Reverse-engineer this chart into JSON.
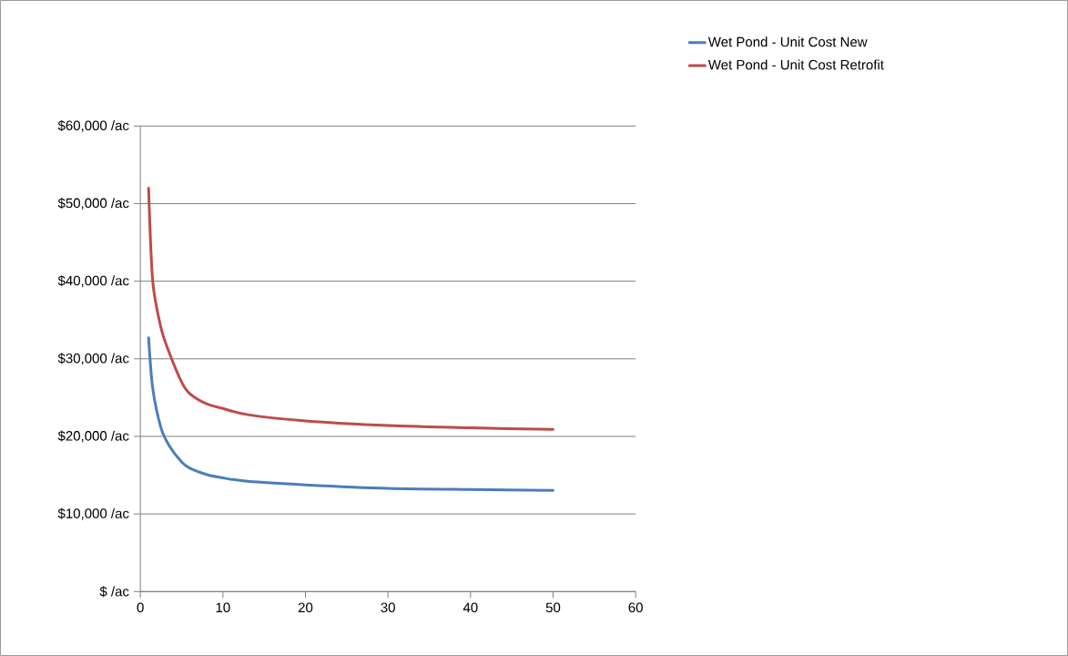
{
  "chart_data": {
    "type": "line",
    "xlim": [
      0,
      60
    ],
    "xticks": [
      0,
      10,
      20,
      30,
      40,
      50,
      60
    ],
    "ylim": [
      0,
      60000
    ],
    "yticks": [
      {
        "value": 0,
        "label": "$ /ac"
      },
      {
        "value": 10000,
        "label": "$10,000 /ac"
      },
      {
        "value": 20000,
        "label": "$20,000 /ac"
      },
      {
        "value": 30000,
        "label": "$30,000 /ac"
      },
      {
        "value": 40000,
        "label": "$40,000 /ac"
      },
      {
        "value": 50000,
        "label": "$50,000 /ac"
      },
      {
        "value": 60000,
        "label": "$60,000 /ac"
      }
    ],
    "grid": "y",
    "legend": "top right",
    "x": [
      1,
      1.5,
      2.5,
      3.5,
      5,
      6,
      8,
      10,
      13,
      20,
      30,
      40,
      50
    ],
    "series": [
      {
        "name": "Wet Pond - Unit Cost New",
        "color": "#4a7ebb",
        "values": [
          32700,
          26200,
          21100,
          18800,
          16700,
          15900,
          15100,
          14650,
          14200,
          13750,
          13300,
          13150,
          13050
        ]
      },
      {
        "name": "Wet Pond - Unit Cost Retrofit",
        "color": "#be4b48",
        "values": [
          52000,
          40000,
          34000,
          30800,
          27000,
          25500,
          24200,
          23600,
          22800,
          22000,
          21400,
          21100,
          20900
        ]
      }
    ]
  }
}
